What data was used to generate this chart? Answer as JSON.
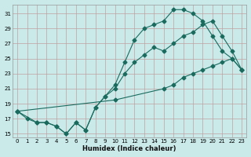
{
  "xlabel": "Humidex (Indice chaleur)",
  "bg_color": "#caeaea",
  "grid_color": "#c0a0a0",
  "line_color": "#1a6b5e",
  "xlim": [
    -0.5,
    23.5
  ],
  "ylim": [
    14.5,
    32.2
  ],
  "xticks": [
    0,
    1,
    2,
    3,
    4,
    5,
    6,
    7,
    8,
    9,
    10,
    11,
    12,
    13,
    14,
    15,
    16,
    17,
    18,
    19,
    20,
    21,
    22,
    23
  ],
  "yticks": [
    15,
    17,
    19,
    21,
    23,
    25,
    27,
    29,
    31
  ],
  "series": [
    {
      "x": [
        0,
        1,
        2,
        3,
        4,
        5,
        6,
        7,
        8,
        9,
        10,
        11,
        12,
        13,
        14,
        15,
        16,
        17,
        18,
        19,
        20,
        21,
        22,
        23
      ],
      "y": [
        18,
        17,
        16.5,
        16.5,
        16,
        15,
        16.5,
        15.5,
        18.5,
        20,
        21.5,
        24.5,
        27.5,
        29,
        29.5,
        30,
        31.5,
        31.5,
        31,
        30,
        28,
        26,
        25,
        23.5
      ]
    },
    {
      "x": [
        0,
        2,
        3,
        4,
        5,
        6,
        7,
        8,
        9,
        10,
        11,
        12,
        13,
        14,
        15,
        16,
        17,
        18,
        19,
        20,
        21,
        22,
        23
      ],
      "y": [
        18,
        16.5,
        16.5,
        16,
        15,
        16.5,
        15.5,
        18.5,
        20,
        21,
        23,
        24.5,
        25.5,
        26.5,
        26,
        27,
        28,
        28.5,
        29.5,
        30,
        28,
        26,
        23.5
      ]
    },
    {
      "x": [
        0,
        10,
        15,
        16,
        17,
        18,
        19,
        20,
        21,
        22,
        23
      ],
      "y": [
        18,
        19.5,
        21,
        21.5,
        22.5,
        23,
        23.5,
        24,
        24.5,
        25,
        23.5
      ]
    }
  ]
}
